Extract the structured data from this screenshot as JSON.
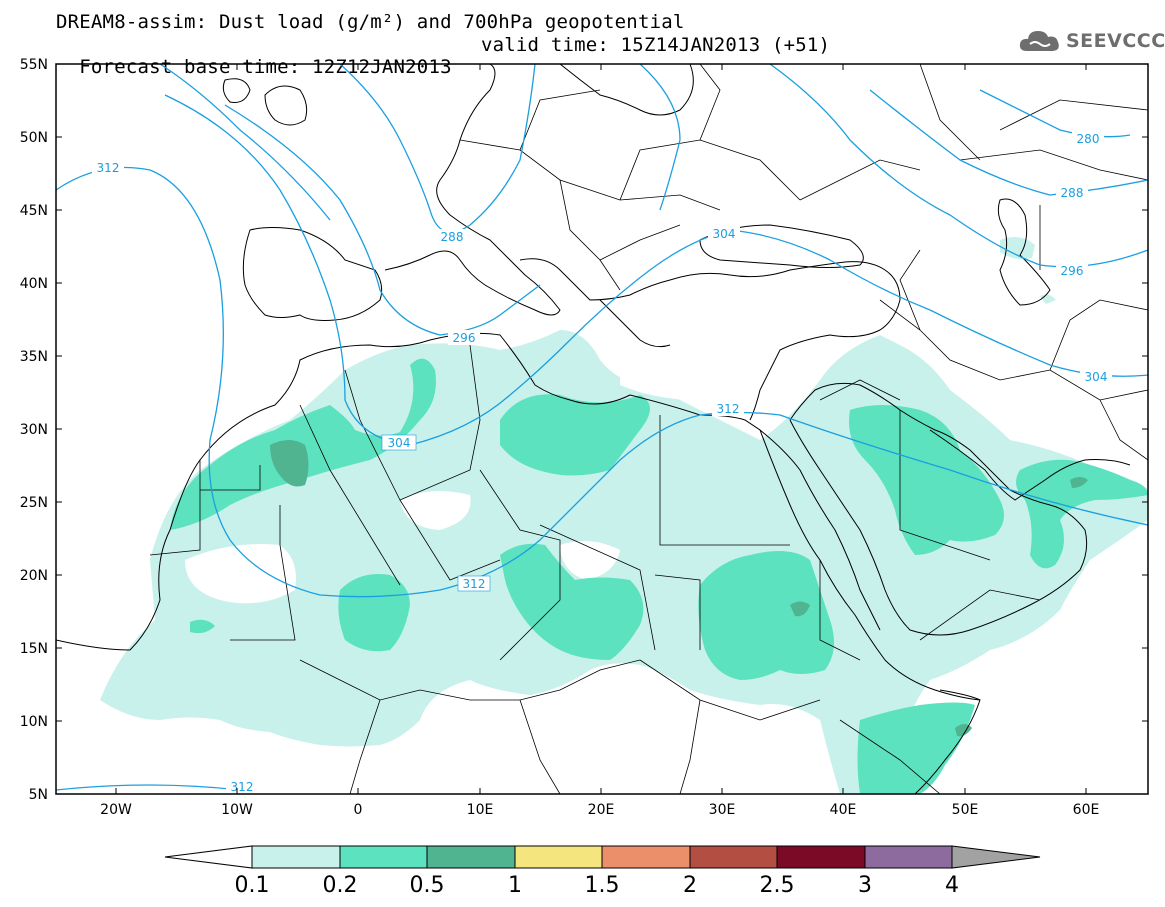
{
  "title": {
    "line1": "DREAM8-assim: Dust load (g/m²) and 700hPa geopotential",
    "line2_base": "Forecast base time: 12Z12JAN2013",
    "line2_valid": "valid time: 15Z14JAN2013 (+51)"
  },
  "logo": {
    "text": "SEEVCCC",
    "icon": "cloud-logo-icon"
  },
  "map": {
    "lat_labels": [
      "55N",
      "50N",
      "45N",
      "40N",
      "35N",
      "30N",
      "25N",
      "20N",
      "15N",
      "10N",
      "5N"
    ],
    "lon_labels": [
      "20W",
      "10W",
      "0",
      "10E",
      "20E",
      "30E",
      "40E",
      "50E",
      "60E"
    ],
    "contour_labels": [
      "312",
      "288",
      "296",
      "304",
      "312",
      "280",
      "288",
      "296",
      "304",
      "312",
      "312"
    ],
    "colors": {
      "contour": "#1a9fe0",
      "coast": "#000000"
    }
  },
  "colorbar": {
    "labels": [
      "0.1",
      "0.2",
      "0.5",
      "1",
      "1.5",
      "2",
      "2.5",
      "3",
      "4"
    ],
    "colors": [
      "#c8f1eb",
      "#5de2c0",
      "#4fb48f",
      "#f4e57f",
      "#eb8e6a",
      "#b34f42",
      "#7b0a27",
      "#8e6b9f",
      "#a2a2a2"
    ]
  }
}
